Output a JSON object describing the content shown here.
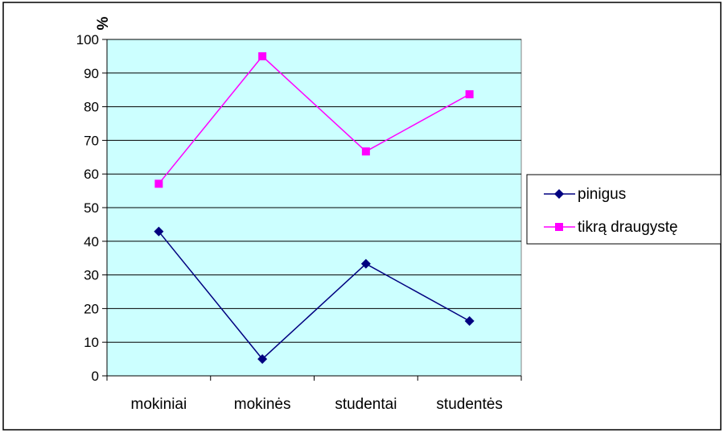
{
  "chart_data": {
    "type": "line",
    "ylabel": "%",
    "ylim": [
      0,
      100
    ],
    "yticks": [
      0,
      10,
      20,
      30,
      40,
      50,
      60,
      70,
      80,
      90,
      100
    ],
    "categories": [
      "mokiniai",
      "mokinės",
      "studentai",
      "studentės"
    ],
    "series": [
      {
        "name": "pinigus",
        "values": [
          42.9,
          5,
          33.3,
          16.3
        ],
        "color": "#000080",
        "marker": "diamond"
      },
      {
        "name": "tikrą draugystę",
        "values": [
          57.1,
          95,
          66.7,
          83.7
        ],
        "color": "#ff00ff",
        "marker": "square"
      }
    ],
    "plot_background": "#ccffff",
    "gridlines": true,
    "legend_position": "right"
  }
}
